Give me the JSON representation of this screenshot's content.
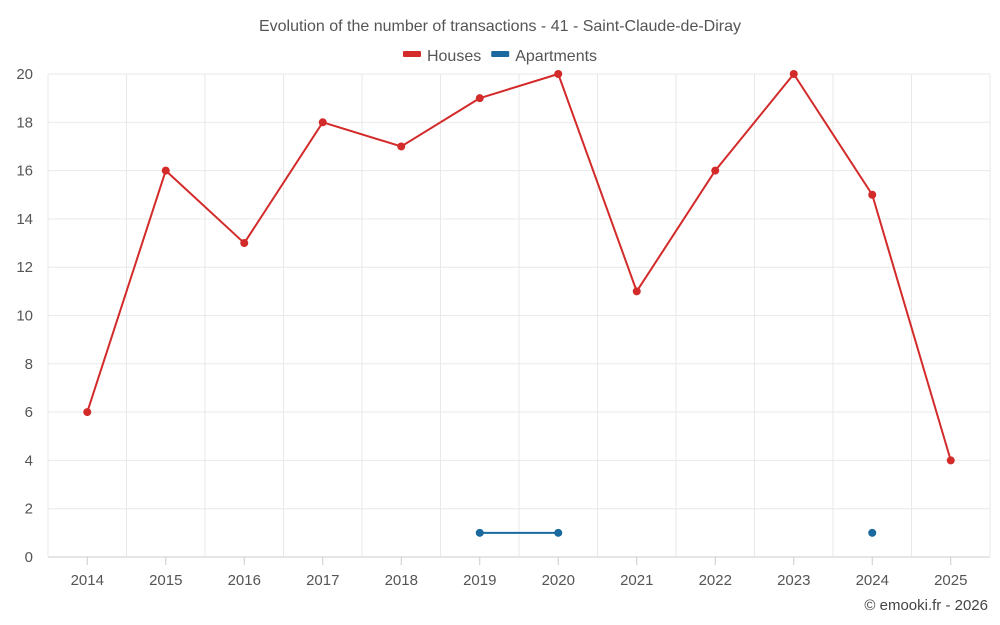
{
  "chart_data": {
    "type": "line",
    "title": "Evolution of the number of transactions - 41 - Saint-Claude-de-Diray",
    "categories": [
      "2014",
      "2015",
      "2016",
      "2017",
      "2018",
      "2019",
      "2020",
      "2021",
      "2022",
      "2023",
      "2024",
      "2025"
    ],
    "series": [
      {
        "name": "Houses",
        "color": "#d32a2a",
        "values": [
          6,
          16,
          13,
          18,
          17,
          19,
          20,
          11,
          16,
          20,
          15,
          4
        ]
      },
      {
        "name": "Apartments",
        "color": "#1a6aa0",
        "values": [
          null,
          null,
          null,
          null,
          null,
          1,
          1,
          null,
          null,
          null,
          1,
          null
        ]
      }
    ],
    "yticks": [
      0,
      2,
      4,
      6,
      8,
      10,
      12,
      14,
      16,
      18,
      20
    ],
    "ylim": [
      0,
      20
    ],
    "xlabel": "",
    "ylabel": "",
    "legend_position": "top-center",
    "grid": true
  },
  "credit": "© emooki.fr - 2026"
}
